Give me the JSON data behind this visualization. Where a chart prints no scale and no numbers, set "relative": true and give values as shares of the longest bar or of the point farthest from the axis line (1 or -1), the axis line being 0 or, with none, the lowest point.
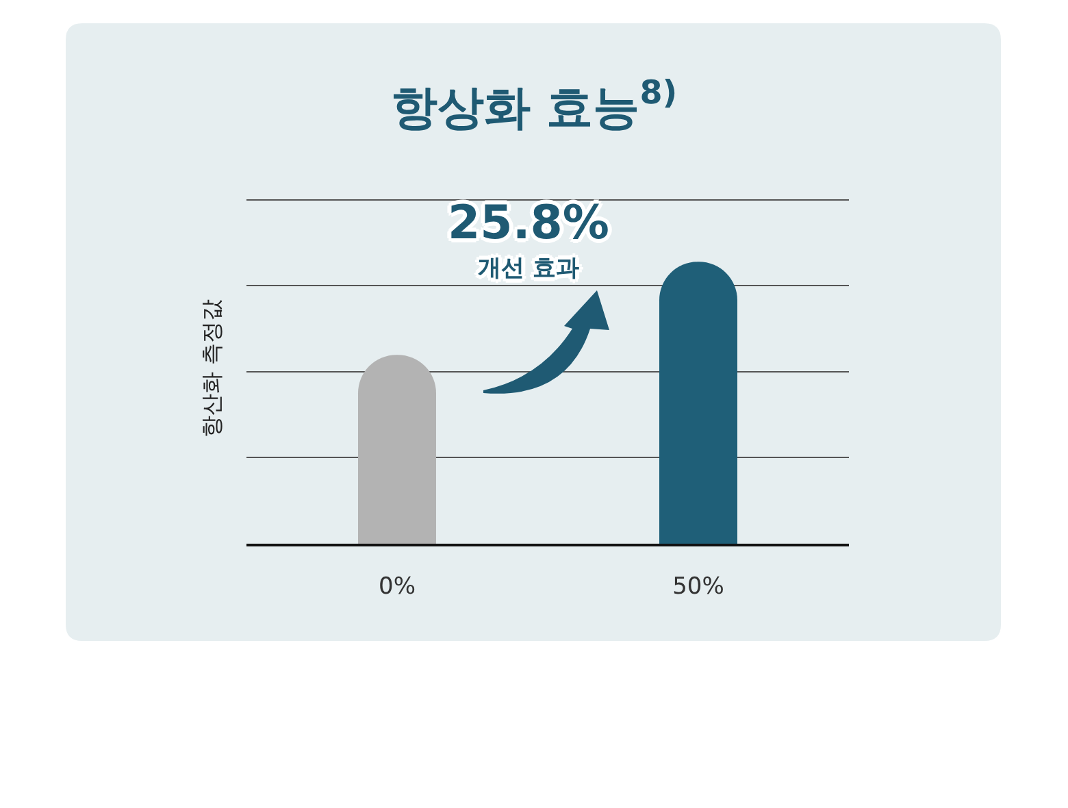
{
  "chart_data": {
    "type": "bar",
    "title": "항상화 효능$^{8)}$",
    "ylabel": "항산화 측정값",
    "categories": [
      "0%",
      "50%"
    ],
    "values": [
      0.67,
      1
    ],
    "colors": [
      "#b3b3b3",
      "#1f5f78"
    ],
    "relative": true,
    "grid": "y",
    "annotations": [
      "25.8%",
      "개선 효과"
    ]
  }
}
